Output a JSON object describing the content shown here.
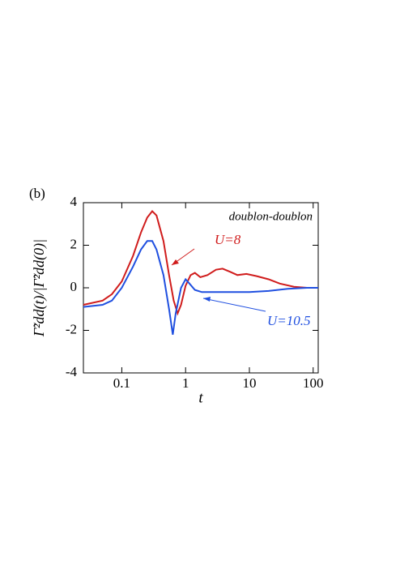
{
  "chart_data": {
    "type": "line",
    "panel_label": "(b)",
    "annotation": "doublon-doublon",
    "xlabel": "t",
    "ylabel": "Γ̃²dd(t)/|Γ̃²dd(0)|",
    "xscale": "log",
    "xlim": [
      0.025,
      120
    ],
    "xticks": [
      0.1,
      1,
      10,
      100
    ],
    "ylim": [
      -4,
      4
    ],
    "yticks": [
      -4,
      -2,
      0,
      2,
      4
    ],
    "series": [
      {
        "name": "U=8",
        "color": "#d01c1c",
        "x": [
          0.025,
          0.05,
          0.07,
          0.1,
          0.15,
          0.2,
          0.25,
          0.3,
          0.35,
          0.45,
          0.55,
          0.65,
          0.75,
          0.85,
          1.0,
          1.2,
          1.4,
          1.7,
          2.2,
          3,
          3.8,
          5,
          6.5,
          9,
          13,
          20,
          30,
          50,
          80,
          120
        ],
        "values": [
          -0.8,
          -0.6,
          -0.3,
          0.3,
          1.5,
          2.6,
          3.3,
          3.6,
          3.4,
          2.2,
          0.6,
          -0.6,
          -1.2,
          -0.8,
          0.1,
          0.6,
          0.7,
          0.5,
          0.6,
          0.85,
          0.9,
          0.75,
          0.6,
          0.65,
          0.55,
          0.4,
          0.2,
          0.05,
          0,
          0
        ]
      },
      {
        "name": "U=10.5",
        "color": "#1f4fe0",
        "x": [
          0.025,
          0.05,
          0.07,
          0.1,
          0.15,
          0.2,
          0.25,
          0.3,
          0.35,
          0.45,
          0.55,
          0.63,
          0.7,
          0.85,
          1.0,
          1.15,
          1.4,
          1.8,
          3,
          10,
          20,
          40,
          80,
          120
        ],
        "values": [
          -0.9,
          -0.8,
          -0.6,
          0,
          1.0,
          1.8,
          2.2,
          2.2,
          1.8,
          0.6,
          -1.0,
          -2.2,
          -1.2,
          0,
          0.4,
          0.2,
          -0.1,
          -0.2,
          -0.2,
          -0.2,
          -0.15,
          -0.05,
          0,
          0
        ]
      }
    ]
  }
}
